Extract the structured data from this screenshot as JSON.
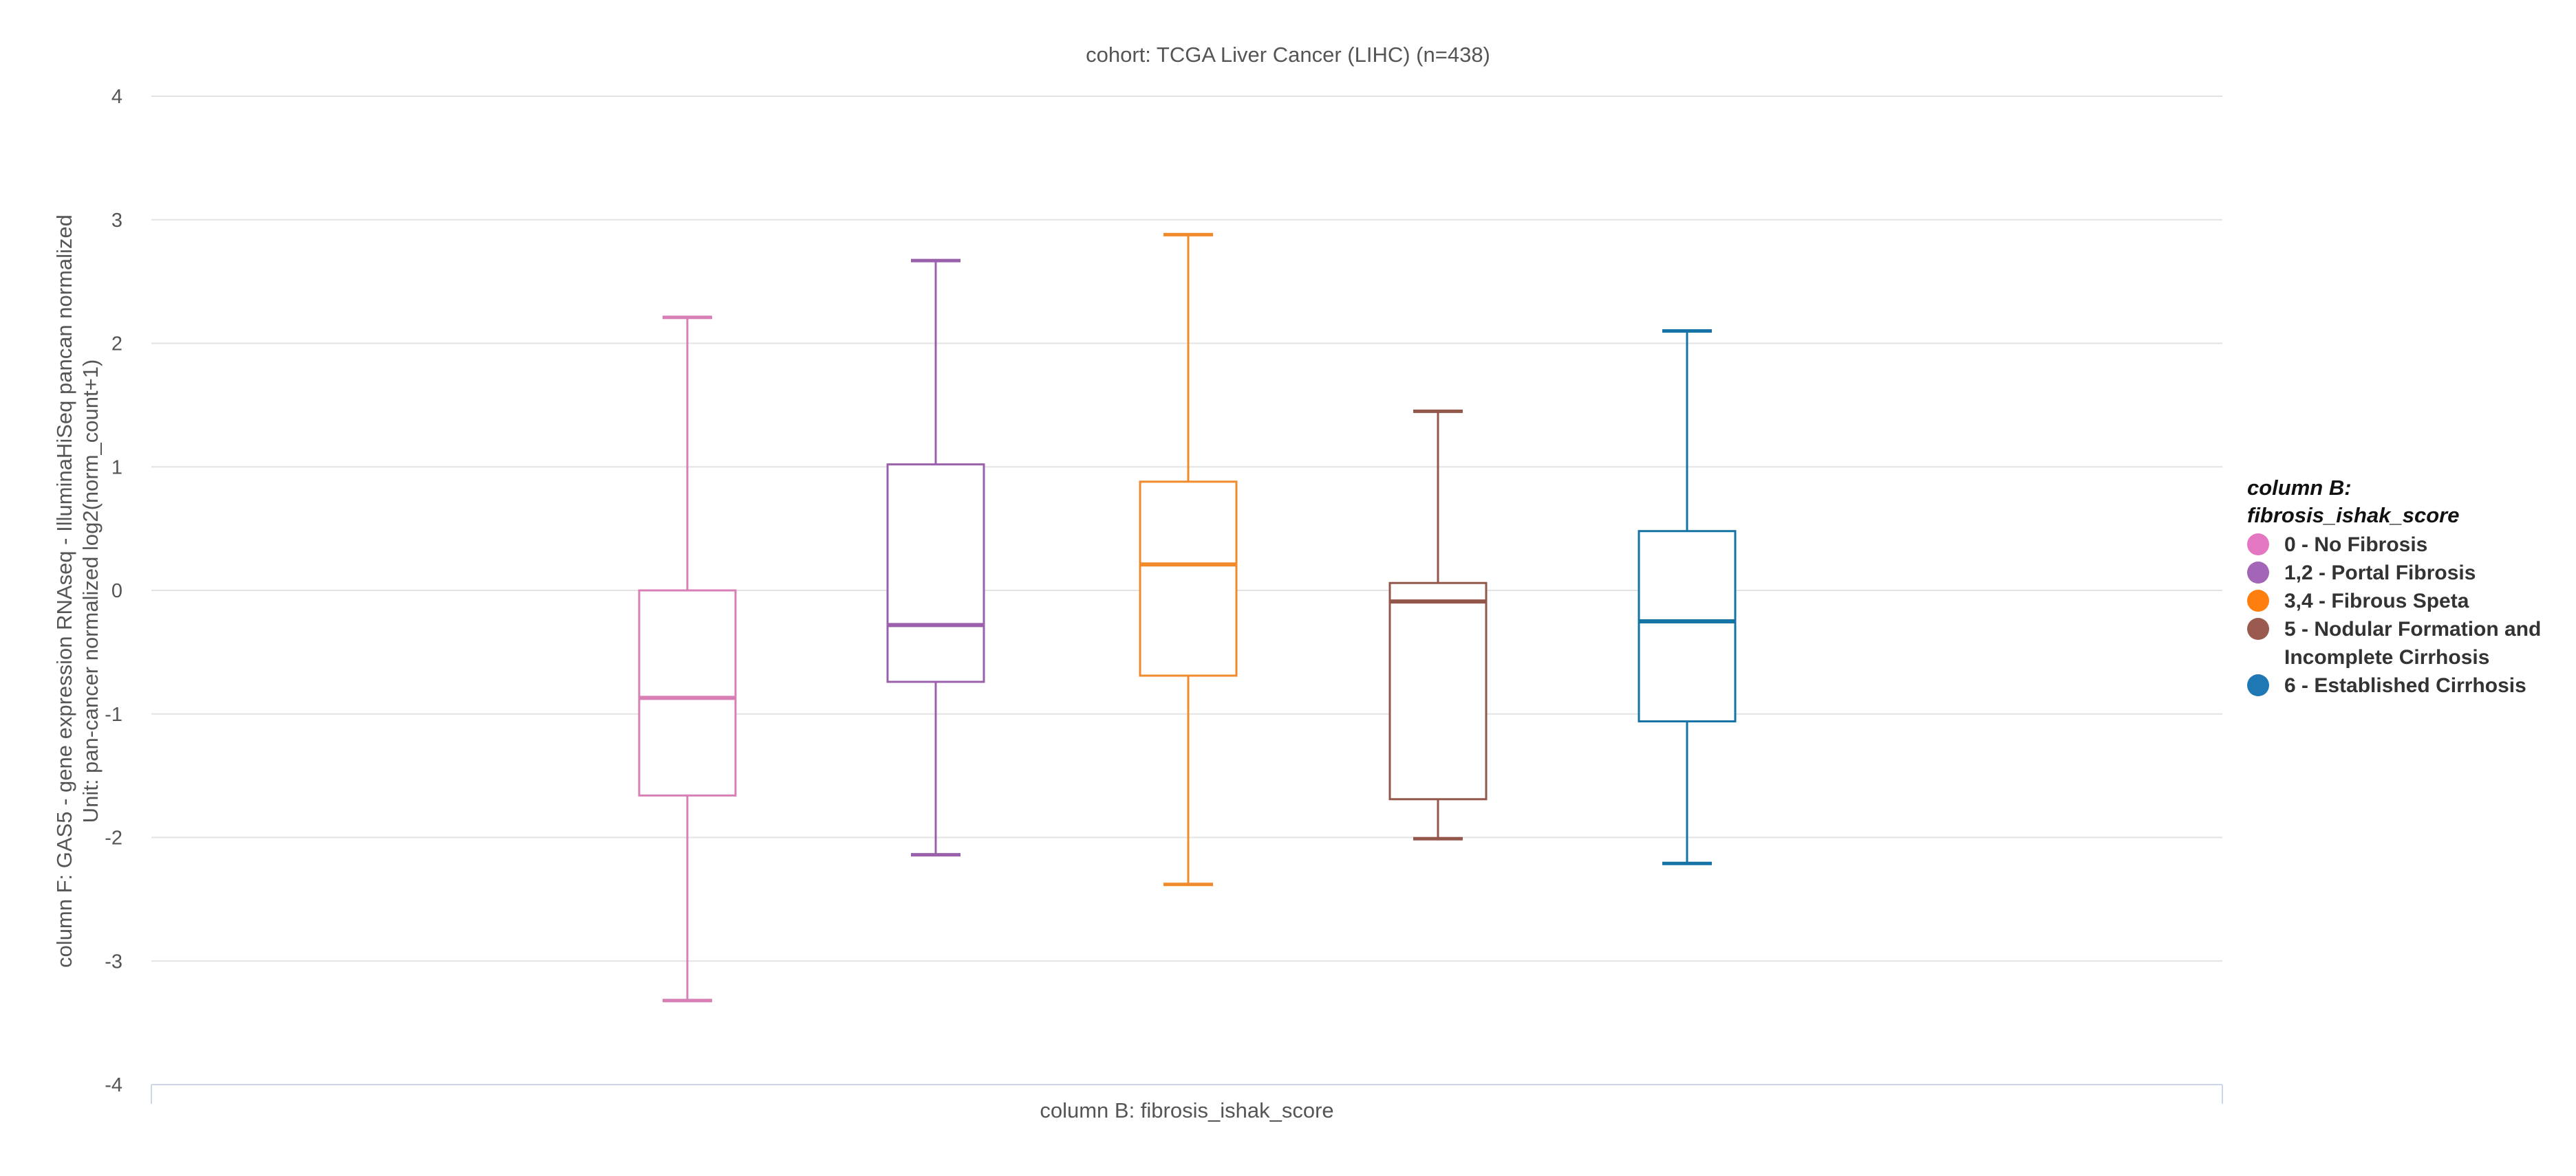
{
  "chart_data": {
    "type": "boxplot",
    "title": "cohort: TCGA Liver Cancer (LIHC) (n=438)",
    "xlabel": "column B: fibrosis_ishak_score",
    "ylabel_line1": "column F: GAS5 - gene expression RNAseq - IlluminaHiSeq pancan normalized",
    "ylabel_line2": "Unit: pan-cancer normalized log2(norm_count+1)",
    "ylim": [
      -4,
      4
    ],
    "yticks": [
      "4",
      "3",
      "2",
      "1",
      "0",
      "-1",
      "-2",
      "-3",
      "-4"
    ],
    "ytick_values": [
      4,
      3,
      2,
      1,
      0,
      -1,
      -2,
      -3,
      -4
    ],
    "legend_title_line1": "column B:",
    "legend_title_line2": "fibrosis_ishak_score",
    "series": [
      {
        "name": "0 - No Fibrosis",
        "color": "#e377c2",
        "stroke": "#d87fb6",
        "min": -3.32,
        "q1": -1.66,
        "median": -0.87,
        "q3": 0.0,
        "max": 2.21
      },
      {
        "name": "1,2 - Portal Fibrosis",
        "color": "#a265b8",
        "stroke": "#9a60ab",
        "min": -2.14,
        "q1": -0.74,
        "median": -0.28,
        "q3": 1.02,
        "max": 2.67
      },
      {
        "name": "3,4 - Fibrous Speta",
        "color": "#ff7f0e",
        "stroke": "#f08a2a",
        "min": -2.38,
        "q1": -0.69,
        "median": 0.21,
        "q3": 0.88,
        "max": 2.88
      },
      {
        "name": "5 - Nodular Formation and Incomplete Cirrhosis",
        "color": "#9b5a4f",
        "stroke": "#93564a",
        "min": -2.01,
        "q1": -1.69,
        "median": -0.09,
        "q3": 0.06,
        "max": 1.45
      },
      {
        "name": "6 - Established Cirrhosis",
        "color": "#1f77b4",
        "stroke": "#1673a5",
        "min": -2.21,
        "q1": -1.06,
        "median": -0.25,
        "q3": 0.48,
        "max": 2.1
      }
    ]
  }
}
